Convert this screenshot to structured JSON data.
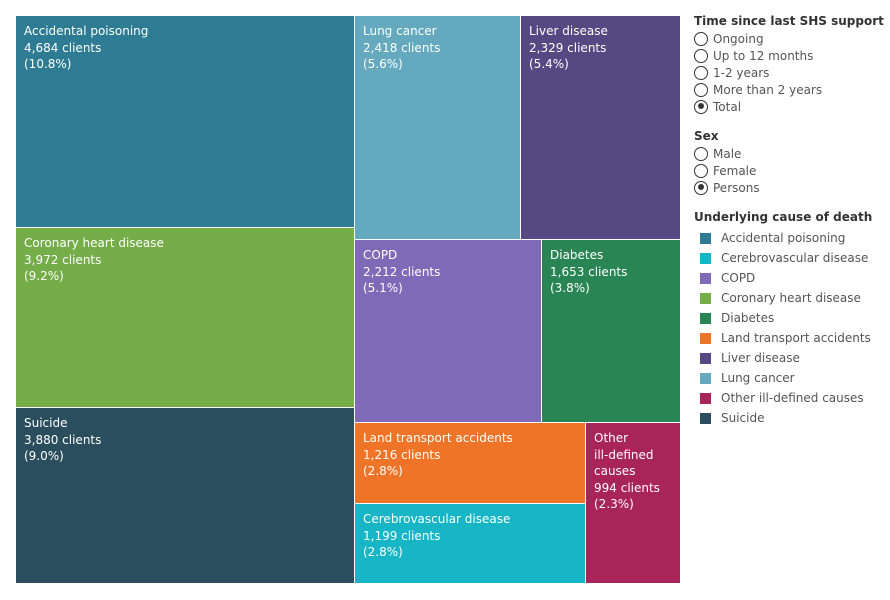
{
  "chart_data": {
    "type": "treemap",
    "items": [
      {
        "id": "accidental-poisoning",
        "name": "Accidental poisoning",
        "label": "Accidental poisoning",
        "clients": 4684,
        "clients_text": "4,684 clients",
        "share_text": "(10.8%)",
        "color": "#2e7c94"
      },
      {
        "id": "coronary-heart-disease",
        "name": "Coronary heart disease",
        "label": "Coronary heart disease",
        "clients": 3972,
        "clients_text": "3,972 clients",
        "share_text": "(9.2%)",
        "color": "#75ad48"
      },
      {
        "id": "suicide",
        "name": "Suicide",
        "label": "Suicide",
        "clients": 3880,
        "clients_text": "3,880 clients",
        "share_text": "(9.0%)",
        "color": "#2a4e5d"
      },
      {
        "id": "lung-cancer",
        "name": "Lung cancer",
        "label": "Lung cancer",
        "clients": 2418,
        "clients_text": "2,418 clients",
        "share_text": "(5.6%)",
        "color": "#65a9bf"
      },
      {
        "id": "liver-disease",
        "name": "Liver disease",
        "label": "Liver disease",
        "clients": 2329,
        "clients_text": "2,329 clients",
        "share_text": "(5.4%)",
        "color": "#564883"
      },
      {
        "id": "copd",
        "name": "COPD",
        "label": "COPD",
        "clients": 2212,
        "clients_text": "2,212 clients",
        "share_text": "(5.1%)",
        "color": "#7e6ab6"
      },
      {
        "id": "diabetes",
        "name": "Diabetes",
        "label": "Diabetes",
        "clients": 1653,
        "clients_text": "1,653 clients",
        "share_text": "(3.8%)",
        "color": "#2a8554"
      },
      {
        "id": "land-transport-accidents",
        "name": "Land transport accidents",
        "label": "Land transport accidents",
        "clients": 1216,
        "clients_text": "1,216 clients",
        "share_text": "(2.8%)",
        "color": "#ef7427"
      },
      {
        "id": "cerebrovascular-disease",
        "name": "Cerebrovascular disease",
        "label": "Cerebrovascular disease",
        "clients": 1199,
        "clients_text": "1,199 clients",
        "share_text": "(2.8%)",
        "color": "#17b6c6"
      },
      {
        "id": "other-ill-defined-causes",
        "name": "Other ill-defined causes",
        "label": "Other\nill-defined\ncauses",
        "clients": 994,
        "clients_text": "994 clients",
        "share_text": "(2.3%)",
        "color": "#a92458"
      }
    ]
  },
  "filters": {
    "time": {
      "title": "Time since last SHS support",
      "options": [
        {
          "label": "Ongoing",
          "selected": false
        },
        {
          "label": "Up to 12 months",
          "selected": false
        },
        {
          "label": "1-2 years",
          "selected": false
        },
        {
          "label": "More than 2 years",
          "selected": false
        },
        {
          "label": "Total",
          "selected": true
        }
      ]
    },
    "sex": {
      "title": "Sex",
      "options": [
        {
          "label": "Male",
          "selected": false
        },
        {
          "label": "Female",
          "selected": false
        },
        {
          "label": "Persons",
          "selected": true
        }
      ]
    }
  },
  "legend": {
    "title": "Underlying cause of death",
    "items": [
      {
        "label": "Accidental poisoning",
        "color": "#2e7c94"
      },
      {
        "label": "Cerebrovascular disease",
        "color": "#17b6c6"
      },
      {
        "label": "COPD",
        "color": "#7e6ab6"
      },
      {
        "label": "Coronary heart disease",
        "color": "#75ad48"
      },
      {
        "label": "Diabetes",
        "color": "#2a8554"
      },
      {
        "label": "Land transport accidents",
        "color": "#ef7427"
      },
      {
        "label": "Liver disease",
        "color": "#564883"
      },
      {
        "label": "Lung cancer",
        "color": "#65a9bf"
      },
      {
        "label": "Other ill-defined causes",
        "color": "#a92458"
      },
      {
        "label": "Suicide",
        "color": "#2a4e5d"
      }
    ]
  }
}
